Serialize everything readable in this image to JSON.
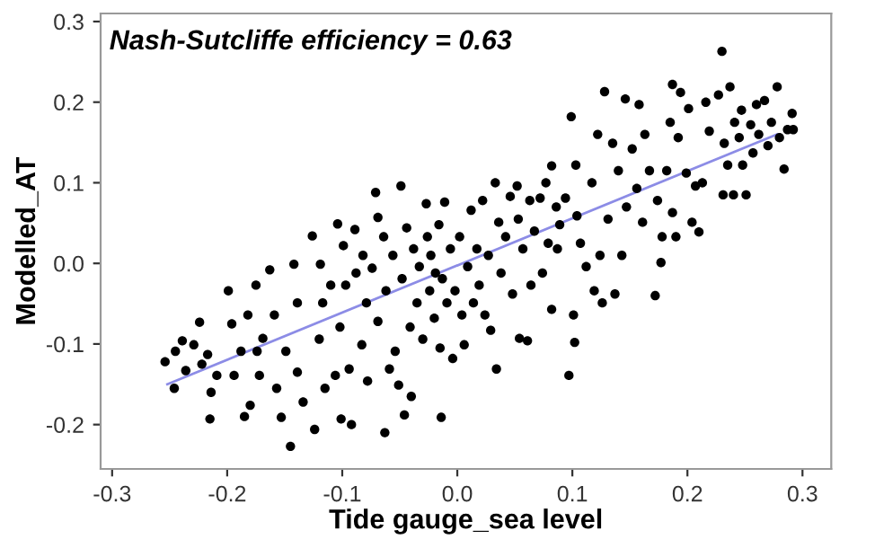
{
  "chart_data": {
    "type": "scatter",
    "xlabel": "Tide gauge_sea level",
    "ylabel": "Modelled_AT",
    "annotations": [
      "Nash-Sutcliffe efficiency = 0.63"
    ],
    "xlim": [
      -0.31,
      0.325
    ],
    "ylim": [
      -0.255,
      0.31
    ],
    "xticks": [
      -0.3,
      -0.2,
      -0.1,
      {
        "value": 0,
        "label": "0.0"
      },
      0.1,
      0.2,
      0.3
    ],
    "yticks": [
      -0.2,
      -0.1,
      {
        "value": 0,
        "label": "0.0"
      },
      0.1,
      0.2,
      0.3
    ],
    "grid": false,
    "series": [
      {
        "marker": "circle",
        "color": "#000000",
        "x": [
          -0.254,
          -0.246,
          -0.245,
          -0.239,
          -0.236,
          -0.229,
          -0.224,
          -0.222,
          -0.217,
          -0.215,
          -0.214,
          -0.209,
          -0.199,
          -0.196,
          -0.194,
          -0.188,
          -0.185,
          -0.182,
          -0.18,
          -0.175,
          -0.174,
          -0.172,
          -0.169,
          -0.163,
          -0.159,
          -0.157,
          -0.153,
          -0.149,
          -0.145,
          -0.142,
          -0.139,
          -0.139,
          -0.134,
          -0.126,
          -0.124,
          -0.12,
          -0.119,
          -0.117,
          -0.115,
          -0.11,
          -0.106,
          -0.104,
          -0.102,
          -0.101,
          -0.099,
          -0.097,
          -0.094,
          -0.092,
          -0.089,
          -0.088,
          -0.083,
          -0.082,
          -0.079,
          -0.078,
          -0.074,
          -0.071,
          -0.069,
          -0.069,
          -0.064,
          -0.063,
          -0.062,
          -0.059,
          -0.056,
          -0.054,
          -0.051,
          -0.049,
          -0.048,
          -0.046,
          -0.044,
          -0.041,
          -0.04,
          -0.038,
          -0.035,
          -0.033,
          -0.03,
          -0.027,
          -0.026,
          -0.024,
          -0.023,
          -0.02,
          -0.019,
          -0.016,
          -0.015,
          -0.014,
          -0.013,
          -0.011,
          -0.009,
          -0.006,
          -0.004,
          -0.002,
          0.002,
          0.004,
          0.006,
          0.009,
          0.012,
          0.014,
          0.017,
          0.019,
          0.022,
          0.024,
          0.027,
          0.029,
          0.033,
          0.034,
          0.036,
          0.038,
          0.042,
          0.046,
          0.048,
          0.052,
          0.053,
          0.054,
          0.057,
          0.061,
          0.063,
          0.064,
          0.067,
          0.072,
          0.074,
          0.077,
          0.079,
          0.082,
          0.082,
          0.086,
          0.087,
          0.089,
          0.094,
          0.097,
          0.099,
          0.101,
          0.102,
          0.103,
          0.104,
          0.107,
          0.112,
          0.117,
          0.119,
          0.122,
          0.124,
          0.126,
          0.128,
          0.131,
          0.135,
          0.137,
          0.14,
          0.143,
          0.146,
          0.147,
          0.152,
          0.156,
          0.158,
          0.161,
          0.163,
          0.167,
          0.172,
          0.174,
          0.177,
          0.178,
          0.182,
          0.185,
          0.187,
          0.187,
          0.19,
          0.192,
          0.194,
          0.199,
          0.201,
          0.204,
          0.207,
          0.21,
          0.213,
          0.216,
          0.219,
          0.227,
          0.23,
          0.231,
          0.232,
          0.235,
          0.237,
          0.24,
          0.241,
          0.245,
          0.247,
          0.248,
          0.251,
          0.255,
          0.257,
          0.26,
          0.262,
          0.267,
          0.27,
          0.273,
          0.278,
          0.28,
          0.284,
          0.287,
          0.291,
          0.292
        ],
        "values": [
          -0.122,
          -0.155,
          -0.109,
          -0.096,
          -0.133,
          -0.101,
          -0.073,
          -0.125,
          -0.113,
          -0.193,
          -0.16,
          -0.139,
          -0.034,
          -0.075,
          -0.139,
          -0.109,
          -0.19,
          -0.064,
          -0.176,
          -0.027,
          -0.109,
          -0.139,
          -0.093,
          -0.008,
          -0.064,
          -0.155,
          -0.191,
          -0.109,
          -0.227,
          -0.001,
          -0.049,
          -0.135,
          -0.172,
          0.034,
          -0.206,
          -0.094,
          -0.001,
          -0.049,
          -0.155,
          -0.027,
          -0.139,
          0.049,
          -0.079,
          -0.193,
          0.022,
          -0.027,
          -0.131,
          -0.2,
          0.042,
          -0.012,
          -0.101,
          0.01,
          -0.049,
          -0.146,
          -0.006,
          0.088,
          0.057,
          -0.072,
          0.033,
          -0.21,
          -0.034,
          -0.131,
          0.01,
          -0.109,
          -0.151,
          0.096,
          -0.019,
          -0.188,
          0.044,
          -0.079,
          -0.165,
          0.018,
          -0.049,
          -0.004,
          -0.094,
          0.074,
          0.033,
          -0.034,
          0.01,
          -0.068,
          -0.012,
          0.048,
          -0.105,
          -0.191,
          -0.019,
          0.076,
          -0.049,
          0.018,
          -0.118,
          -0.034,
          0.033,
          -0.064,
          -0.101,
          -0.004,
          0.066,
          -0.049,
          0.018,
          -0.027,
          0.078,
          -0.064,
          0.01,
          -0.083,
          0.1,
          -0.131,
          0.051,
          -0.012,
          0.033,
          0.083,
          -0.038,
          0.096,
          0.055,
          -0.093,
          0.018,
          -0.096,
          0.078,
          -0.027,
          0.04,
          0.081,
          -0.012,
          0.1,
          0.025,
          0.121,
          -0.057,
          0.07,
          0.018,
          0.048,
          0.081,
          -0.139,
          0.182,
          -0.064,
          -0.098,
          0.122,
          0.059,
          0.025,
          -0.004,
          0.1,
          -0.034,
          0.16,
          0.01,
          -0.049,
          0.213,
          0.055,
          0.149,
          -0.038,
          0.115,
          0.01,
          0.204,
          0.07,
          0.142,
          0.093,
          0.197,
          0.051,
          0.16,
          0.115,
          -0.04,
          0.078,
          0.001,
          0.033,
          0.115,
          0.175,
          0.222,
          0.063,
          0.033,
          0.156,
          0.212,
          0.112,
          0.192,
          0.051,
          0.096,
          0.039,
          0.1,
          0.2,
          0.164,
          0.209,
          0.263,
          0.085,
          0.149,
          0.122,
          0.219,
          0.085,
          0.175,
          0.156,
          0.19,
          0.122,
          0.085,
          0.172,
          0.137,
          0.197,
          0.16,
          0.202,
          0.146,
          0.175,
          0.219,
          0.156,
          0.117,
          0.166,
          0.186,
          0.166
        ]
      },
      {
        "type": "line",
        "marker": "none",
        "color": "#8c8ce6",
        "x": [
          -0.252,
          0.278
        ],
        "values": [
          -0.15,
          0.16
        ]
      }
    ]
  }
}
